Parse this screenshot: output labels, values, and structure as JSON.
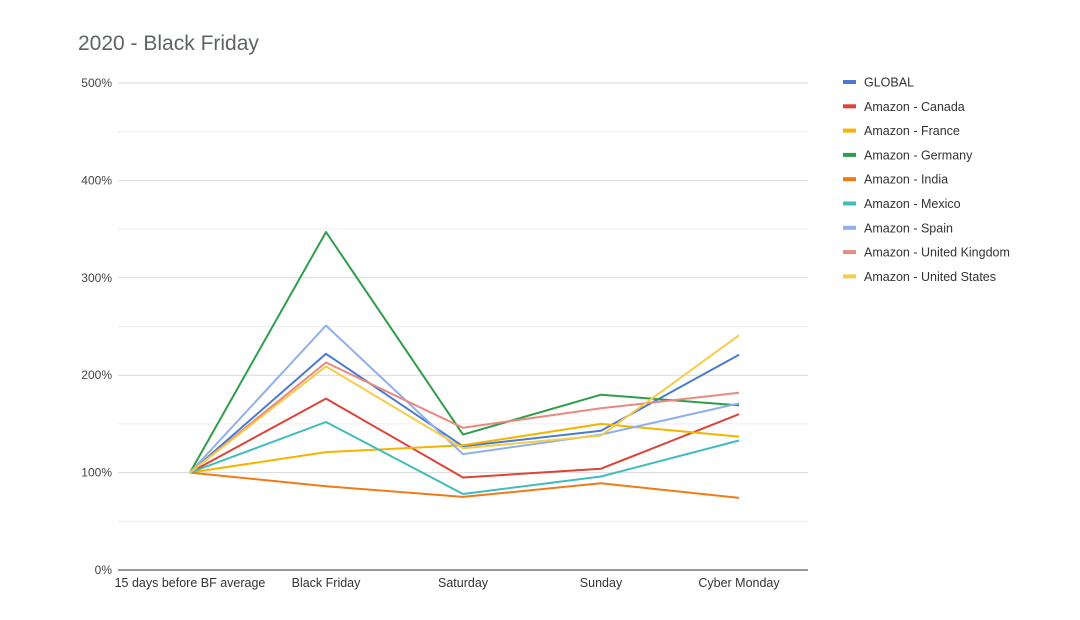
{
  "chart_data": {
    "type": "line",
    "title": "2020 - Black Friday",
    "xlabel": "",
    "ylabel": "",
    "categories": [
      "15 days before BF average",
      "Black Friday",
      "Saturday",
      "Sunday",
      "Cyber Monday"
    ],
    "ylim": [
      0,
      500
    ],
    "yticks": [
      0,
      100,
      200,
      300,
      400,
      500
    ],
    "ytick_labels": [
      "0%",
      "100%",
      "200%",
      "300%",
      "400%",
      "500%"
    ],
    "grid": true,
    "legend_position": "right",
    "series": [
      {
        "name": "GLOBAL",
        "color": "#4a7bd1",
        "values": [
          100,
          222,
          127,
          143,
          221
        ]
      },
      {
        "name": "Amazon - Canada",
        "color": "#db4437",
        "values": [
          100,
          176,
          95,
          104,
          160
        ]
      },
      {
        "name": "Amazon - France",
        "color": "#f4b400",
        "values": [
          100,
          121,
          128,
          150,
          137
        ]
      },
      {
        "name": "Amazon - Germany",
        "color": "#2e9e4a",
        "values": [
          100,
          347,
          139,
          180,
          169
        ]
      },
      {
        "name": "Amazon - India",
        "color": "#f07a16",
        "values": [
          100,
          86,
          75,
          89,
          74
        ]
      },
      {
        "name": "Amazon - Mexico",
        "color": "#3fbcbc",
        "values": [
          100,
          152,
          78,
          96,
          133
        ]
      },
      {
        "name": "Amazon - Spain",
        "color": "#8fb0ea",
        "values": [
          100,
          251,
          119,
          139,
          171
        ]
      },
      {
        "name": "Amazon - United Kingdom",
        "color": "#e88a80",
        "values": [
          100,
          213,
          146,
          166,
          182
        ]
      },
      {
        "name": "Amazon - United States",
        "color": "#f5cd48",
        "values": [
          100,
          209,
          125,
          138,
          241
        ]
      }
    ]
  }
}
